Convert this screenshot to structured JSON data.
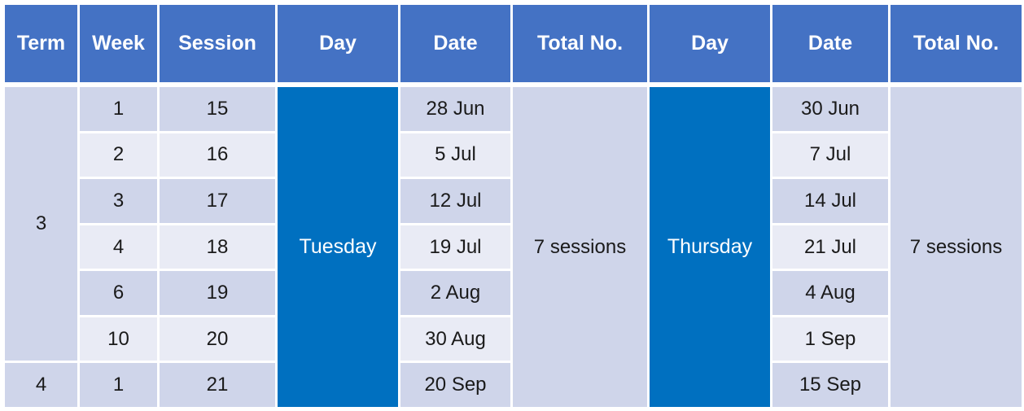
{
  "headers": [
    "Term",
    "Week",
    "Session",
    "Day",
    "Date",
    "Total No.",
    "Day",
    "Date",
    "Total No."
  ],
  "terms": [
    "3",
    "4"
  ],
  "rows": [
    {
      "week": "1",
      "session": "15",
      "date1": "28 Jun",
      "date2": "30 Jun"
    },
    {
      "week": "2",
      "session": "16",
      "date1": "5 Jul",
      "date2": "7 Jul"
    },
    {
      "week": "3",
      "session": "17",
      "date1": "12 Jul",
      "date2": "14 Jul"
    },
    {
      "week": "4",
      "session": "18",
      "date1": "19 Jul",
      "date2": "21 Jul"
    },
    {
      "week": "6",
      "session": "19",
      "date1": "2 Aug",
      "date2": "4 Aug"
    },
    {
      "week": "10",
      "session": "20",
      "date1": "30 Aug",
      "date2": "1 Sep"
    },
    {
      "week": "1",
      "session": "21",
      "date1": "20 Sep",
      "date2": "15 Sep"
    }
  ],
  "day1": "Tuesday",
  "day2": "Thursday",
  "total1": "7 sessions",
  "total2": "7 sessions",
  "colors": {
    "header_bg": "#4472c4",
    "day_bg": "#0070c0",
    "row_dark": "#cfd5ea",
    "row_light": "#e9ebf5"
  }
}
